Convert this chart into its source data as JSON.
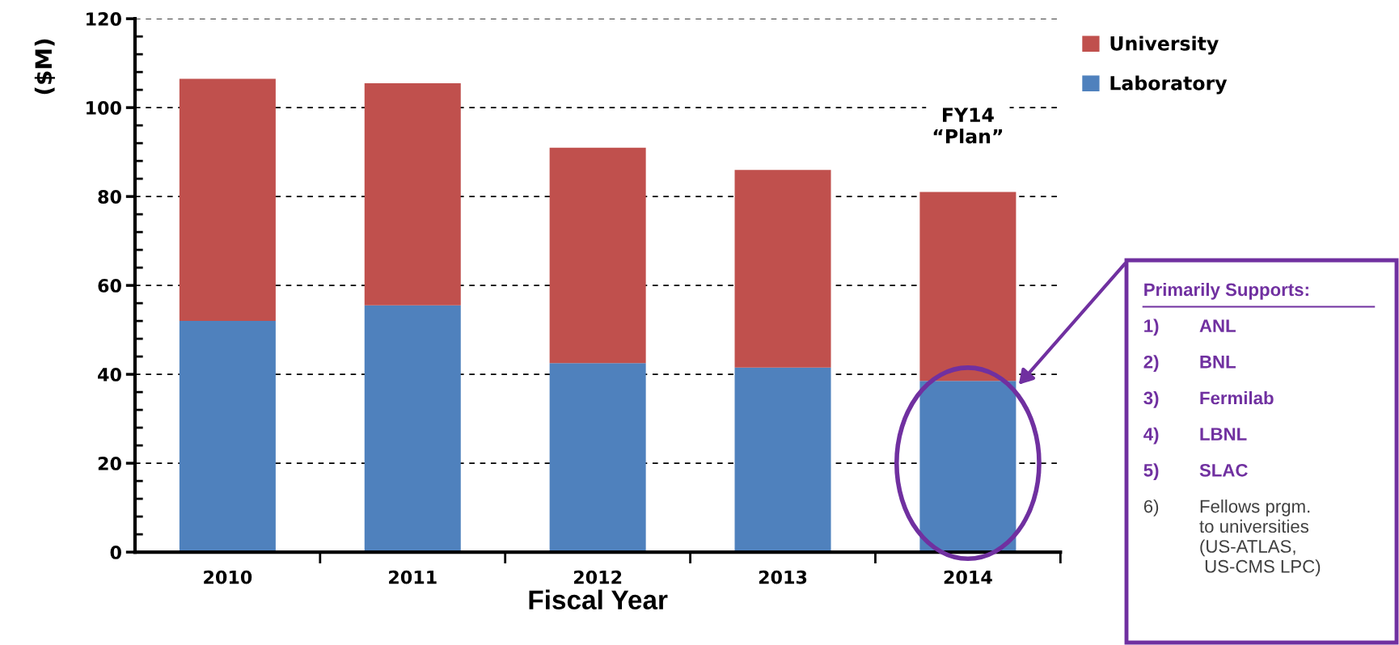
{
  "chart_data": {
    "type": "bar",
    "stacked": true,
    "xlabel": "Fiscal Year",
    "ylabel": "($M)",
    "categories": [
      "2010",
      "2011",
      "2012",
      "2013",
      "2014"
    ],
    "series": [
      {
        "name": "Laboratory",
        "color": "#4f81bd",
        "values": [
          52,
          55.5,
          42.5,
          41.5,
          38.5
        ]
      },
      {
        "name": "University",
        "color": "#c0504d",
        "values": [
          54.5,
          50,
          48.5,
          44.5,
          42.5
        ]
      }
    ],
    "ylim": [
      0,
      120
    ],
    "yticks": [
      0,
      20,
      40,
      60,
      80,
      100,
      120
    ],
    "grid": "y",
    "legend": "top right",
    "annotations": [
      {
        "text": "FY14\n“Plan”",
        "x": "2014",
        "y": 81
      },
      "Primarily Supports:",
      "1)\tANL",
      "2)\tBNL",
      "3)\tFermilab",
      "4)\tLBNL",
      "5)\tSLAC",
      "6)\tFellows prgm.\nto universities\n(US-ATLAS,\n US-CMS LPC)"
    ]
  }
}
